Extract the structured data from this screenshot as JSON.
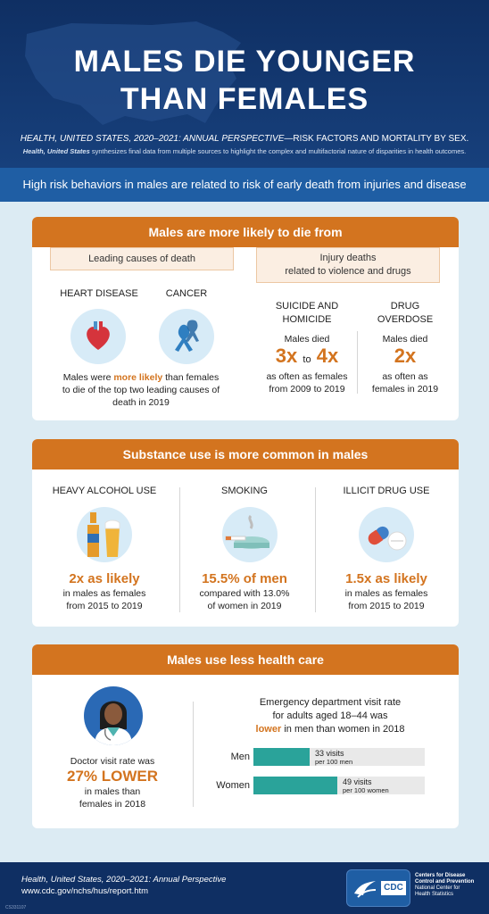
{
  "header": {
    "title_line1": "MALES DIE YOUNGER",
    "title_line2": "THAN FEMALES",
    "subtitle_italic": "HEALTH, UNITED STATES, 2020–2021: ANNUAL PERSPECTIVE",
    "subtitle_rest": "—RISK FACTORS AND MORTALITY BY SEX.",
    "description_italic": "Health, United States",
    "description_rest": " synthesizes final data from multiple sources to highlight the complex and multifactorial nature of disparities in health outcomes."
  },
  "banner": "High risk behaviors in males are related to risk of early death from injuries and disease",
  "section1": {
    "heading": "Males are more likely to die from",
    "leading_tag": "Leading causes of death",
    "heart_label": "HEART DISEASE",
    "cancer_label": "CANCER",
    "leading_text_a": "Males were ",
    "leading_text_em": "more likely",
    "leading_text_b": " than females",
    "leading_text_line2": "to die of the top two leading causes of",
    "leading_text_line3": "death in 2019",
    "injury_tag_line1": "Injury deaths",
    "injury_tag_line2": "related to violence and drugs",
    "suicide_label_1": "SUICIDE AND",
    "suicide_label_2": "HOMICIDE",
    "suicide_died": "Males died",
    "suicide_big_a": "3x",
    "suicide_to": "to",
    "suicide_big_b": "4x",
    "suicide_text_1": "as often as females",
    "suicide_text_2": "from 2009 to 2019",
    "drug_label_1": "DRUG",
    "drug_label_2": "OVERDOSE",
    "drug_died": "Males died",
    "drug_big": "2x",
    "drug_text_1": "as often as",
    "drug_text_2": "females in 2019"
  },
  "section2": {
    "heading": "Substance use is more common in males",
    "alcohol_label": "HEAVY ALCOHOL USE",
    "alcohol_big": "2x as likely",
    "alcohol_text_1": "in males as females",
    "alcohol_text_2": "from 2015 to 2019",
    "smoking_label": "SMOKING",
    "smoking_big": "15.5% of men",
    "smoking_text_1": "compared with 13.0%",
    "smoking_text_2": "of women in 2019",
    "drug_label": "ILLICIT DRUG USE",
    "drug_big": "1.5x as likely",
    "drug_text_1": "in males as females",
    "drug_text_2": "from 2015 to 2019"
  },
  "section3": {
    "heading": "Males use less health care",
    "doctor_text_1": "Doctor visit rate was",
    "doctor_big": "27% LOWER",
    "doctor_text_2": "in males than",
    "doctor_text_3": "females in 2018",
    "ed_text_1": "Emergency department visit rate",
    "ed_text_2": "for adults aged 18–44 was",
    "ed_text_em": "lower",
    "ed_text_3": " in men than women in 2018",
    "bars": [
      {
        "label": "Men",
        "value_text": "33 visits",
        "unit": "per 100 men",
        "value": 33
      },
      {
        "label": "Women",
        "value_text": "49 visits",
        "unit": "per 100 women",
        "value": 49
      }
    ]
  },
  "footer": {
    "source_title": "Health, United States, 2020–2021: Annual Perspective",
    "source_url": "www.cdc.gov/nchs/hus/report.htm",
    "code": "CS331107",
    "cdc_logo": "CDC",
    "agency_1": "Centers for Disease",
    "agency_2": "Control and Prevention",
    "agency_3": "National Center for",
    "agency_4": "Health Statistics"
  },
  "colors": {
    "accent": "#d3741f",
    "navy": "#0f2f63",
    "blue": "#1f5ea4",
    "teal": "#2aa39a"
  }
}
